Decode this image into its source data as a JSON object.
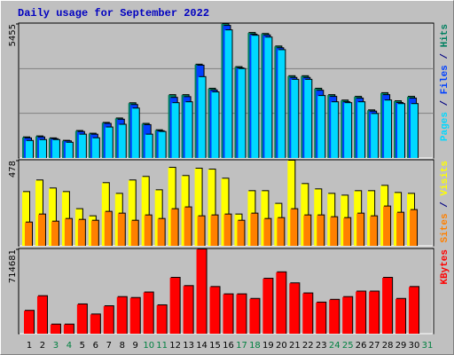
{
  "chart_data": [
    {
      "type": "bar",
      "title": "Daily usage for September 2022",
      "ylim": [
        0,
        5455
      ],
      "yticks": [
        5455
      ],
      "legend_separator": " / ",
      "series": [
        {
          "name": "Hits",
          "color": "#008060",
          "values": [
            840,
            880,
            800,
            700,
            1100,
            990,
            1430,
            1610,
            2230,
            1390,
            1130,
            2560,
            2560,
            3800,
            2820,
            5455,
            3700,
            5090,
            5050,
            4540,
            3330,
            3330,
            2820,
            2560,
            2340,
            2490,
            1940,
            2640,
            2310,
            2490,
            null
          ]
        },
        {
          "name": "Files",
          "color": "#0040ff",
          "values": [
            800,
            840,
            770,
            680,
            1060,
            950,
            1390,
            1560,
            2160,
            1340,
            1090,
            2450,
            2480,
            3760,
            2750,
            5380,
            3650,
            5020,
            4990,
            4470,
            3260,
            3260,
            2740,
            2490,
            2270,
            2420,
            1890,
            2560,
            2240,
            2420,
            null
          ]
        },
        {
          "name": "Pages",
          "color": "#00d8ff",
          "values": [
            695,
            732,
            732,
            622,
            952,
            805,
            1244,
            1354,
            2013,
            952,
            1061,
            2233,
            2269,
            3294,
            2672,
            5197,
            3623,
            4978,
            4904,
            4392,
            3184,
            3184,
            2525,
            2269,
            2233,
            2269,
            1793,
            2342,
            2196,
            2196,
            null
          ]
        }
      ]
    },
    {
      "type": "bar",
      "ylim": [
        0,
        478
      ],
      "yticks": [
        478
      ],
      "legend_separator": " / ",
      "series": [
        {
          "name": "Visits",
          "color": "#ffff00",
          "values": [
            302,
            367,
            322,
            302,
            206,
            166,
            352,
            292,
            367,
            387,
            312,
            438,
            392,
            433,
            428,
            377,
            176,
            307,
            307,
            236,
            478,
            347,
            317,
            292,
            282,
            307,
            307,
            337,
            297,
            292,
            null
          ]
        },
        {
          "name": "Sites",
          "color": "#ff8000",
          "values": [
            131,
            176,
            136,
            151,
            146,
            141,
            191,
            181,
            141,
            171,
            151,
            206,
            216,
            166,
            171,
            176,
            141,
            181,
            151,
            156,
            206,
            171,
            171,
            161,
            156,
            181,
            166,
            221,
            186,
            201,
            null
          ]
        }
      ]
    },
    {
      "type": "bar",
      "ylim": [
        0,
        714681
      ],
      "yticks": [
        714681
      ],
      "categories": [
        "1",
        "2",
        "3",
        "4",
        "5",
        "6",
        "7",
        "8",
        "9",
        "10",
        "11",
        "12",
        "13",
        "14",
        "15",
        "16",
        "17",
        "18",
        "19",
        "20",
        "21",
        "22",
        "23",
        "24",
        "25",
        "26",
        "27",
        "28",
        "29",
        "30",
        "31"
      ],
      "category_colors": [
        "#000000",
        "#000000",
        "#008040",
        "#008040",
        "#000000",
        "#000000",
        "#000000",
        "#000000",
        "#000000",
        "#008040",
        "#008040",
        "#000000",
        "#000000",
        "#000000",
        "#000000",
        "#000000",
        "#008040",
        "#008040",
        "#000000",
        "#000000",
        "#000000",
        "#000000",
        "#000000",
        "#008040",
        "#008040",
        "#000000",
        "#000000",
        "#000000",
        "#000000",
        "#000000",
        "#008040"
      ],
      "series": [
        {
          "name": "KBytes",
          "color": "#ff0000",
          "values": [
            194200,
            318488,
            77680,
            77680,
            248576,
            163128,
            233040,
            310720,
            302952,
            349560,
            240808,
            473848,
            403936,
            714681,
            396168,
            334024,
            334024,
            295184,
            466080,
            520456,
            427240,
            341792,
            264112,
            287416,
            310720,
            357328,
            357328,
            473848,
            295184,
            396168,
            null
          ]
        }
      ]
    }
  ]
}
